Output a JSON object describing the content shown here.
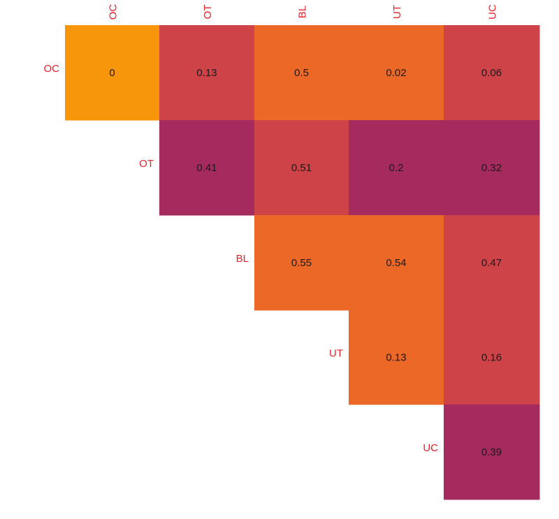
{
  "chart_data": {
    "type": "heatmap",
    "layout": "upper-triangular",
    "rows": [
      "OC",
      "OT",
      "BL",
      "UT",
      "UC"
    ],
    "columns": [
      "OC",
      "OT",
      "BL",
      "UT",
      "UC"
    ],
    "cells": [
      {
        "row": "OC",
        "col": "OC",
        "value": 0,
        "label": "0",
        "color": "#F7960A"
      },
      {
        "row": "OC",
        "col": "OT",
        "value": 0.13,
        "label": "0.13",
        "color": "#CD4348"
      },
      {
        "row": "OC",
        "col": "BL",
        "value": 0.5,
        "label": "0.5",
        "color": "#EB6826"
      },
      {
        "row": "OC",
        "col": "UT",
        "value": 0.02,
        "label": "0.02",
        "color": "#EB6826"
      },
      {
        "row": "OC",
        "col": "UC",
        "value": 0.06,
        "label": "0.06",
        "color": "#CD4348"
      },
      {
        "row": "OT",
        "col": "OT",
        "value": 0.41,
        "label": "0.41",
        "color": "#A52A5E"
      },
      {
        "row": "OT",
        "col": "BL",
        "value": 0.51,
        "label": "0.51",
        "color": "#CD4348"
      },
      {
        "row": "OT",
        "col": "UT",
        "value": 0.2,
        "label": "0.2",
        "color": "#A52A5E"
      },
      {
        "row": "OT",
        "col": "UC",
        "value": 0.32,
        "label": "0.32",
        "color": "#A52A5E"
      },
      {
        "row": "BL",
        "col": "BL",
        "value": 0.55,
        "label": "0.55",
        "color": "#EB6826"
      },
      {
        "row": "BL",
        "col": "UT",
        "value": 0.54,
        "label": "0.54",
        "color": "#EB6826"
      },
      {
        "row": "BL",
        "col": "UC",
        "value": 0.47,
        "label": "0.47",
        "color": "#CD4348"
      },
      {
        "row": "UT",
        "col": "UT",
        "value": 0.13,
        "label": "0.13",
        "color": "#EB6826"
      },
      {
        "row": "UT",
        "col": "UC",
        "value": 0.16,
        "label": "0.16",
        "color": "#CD4348"
      },
      {
        "row": "UC",
        "col": "UC",
        "value": 0.39,
        "label": "0.39",
        "color": "#A52A5E"
      }
    ],
    "label_color": "#E8202A",
    "value_text_color": "#1a1a1a",
    "legend": "none",
    "grid": false
  }
}
